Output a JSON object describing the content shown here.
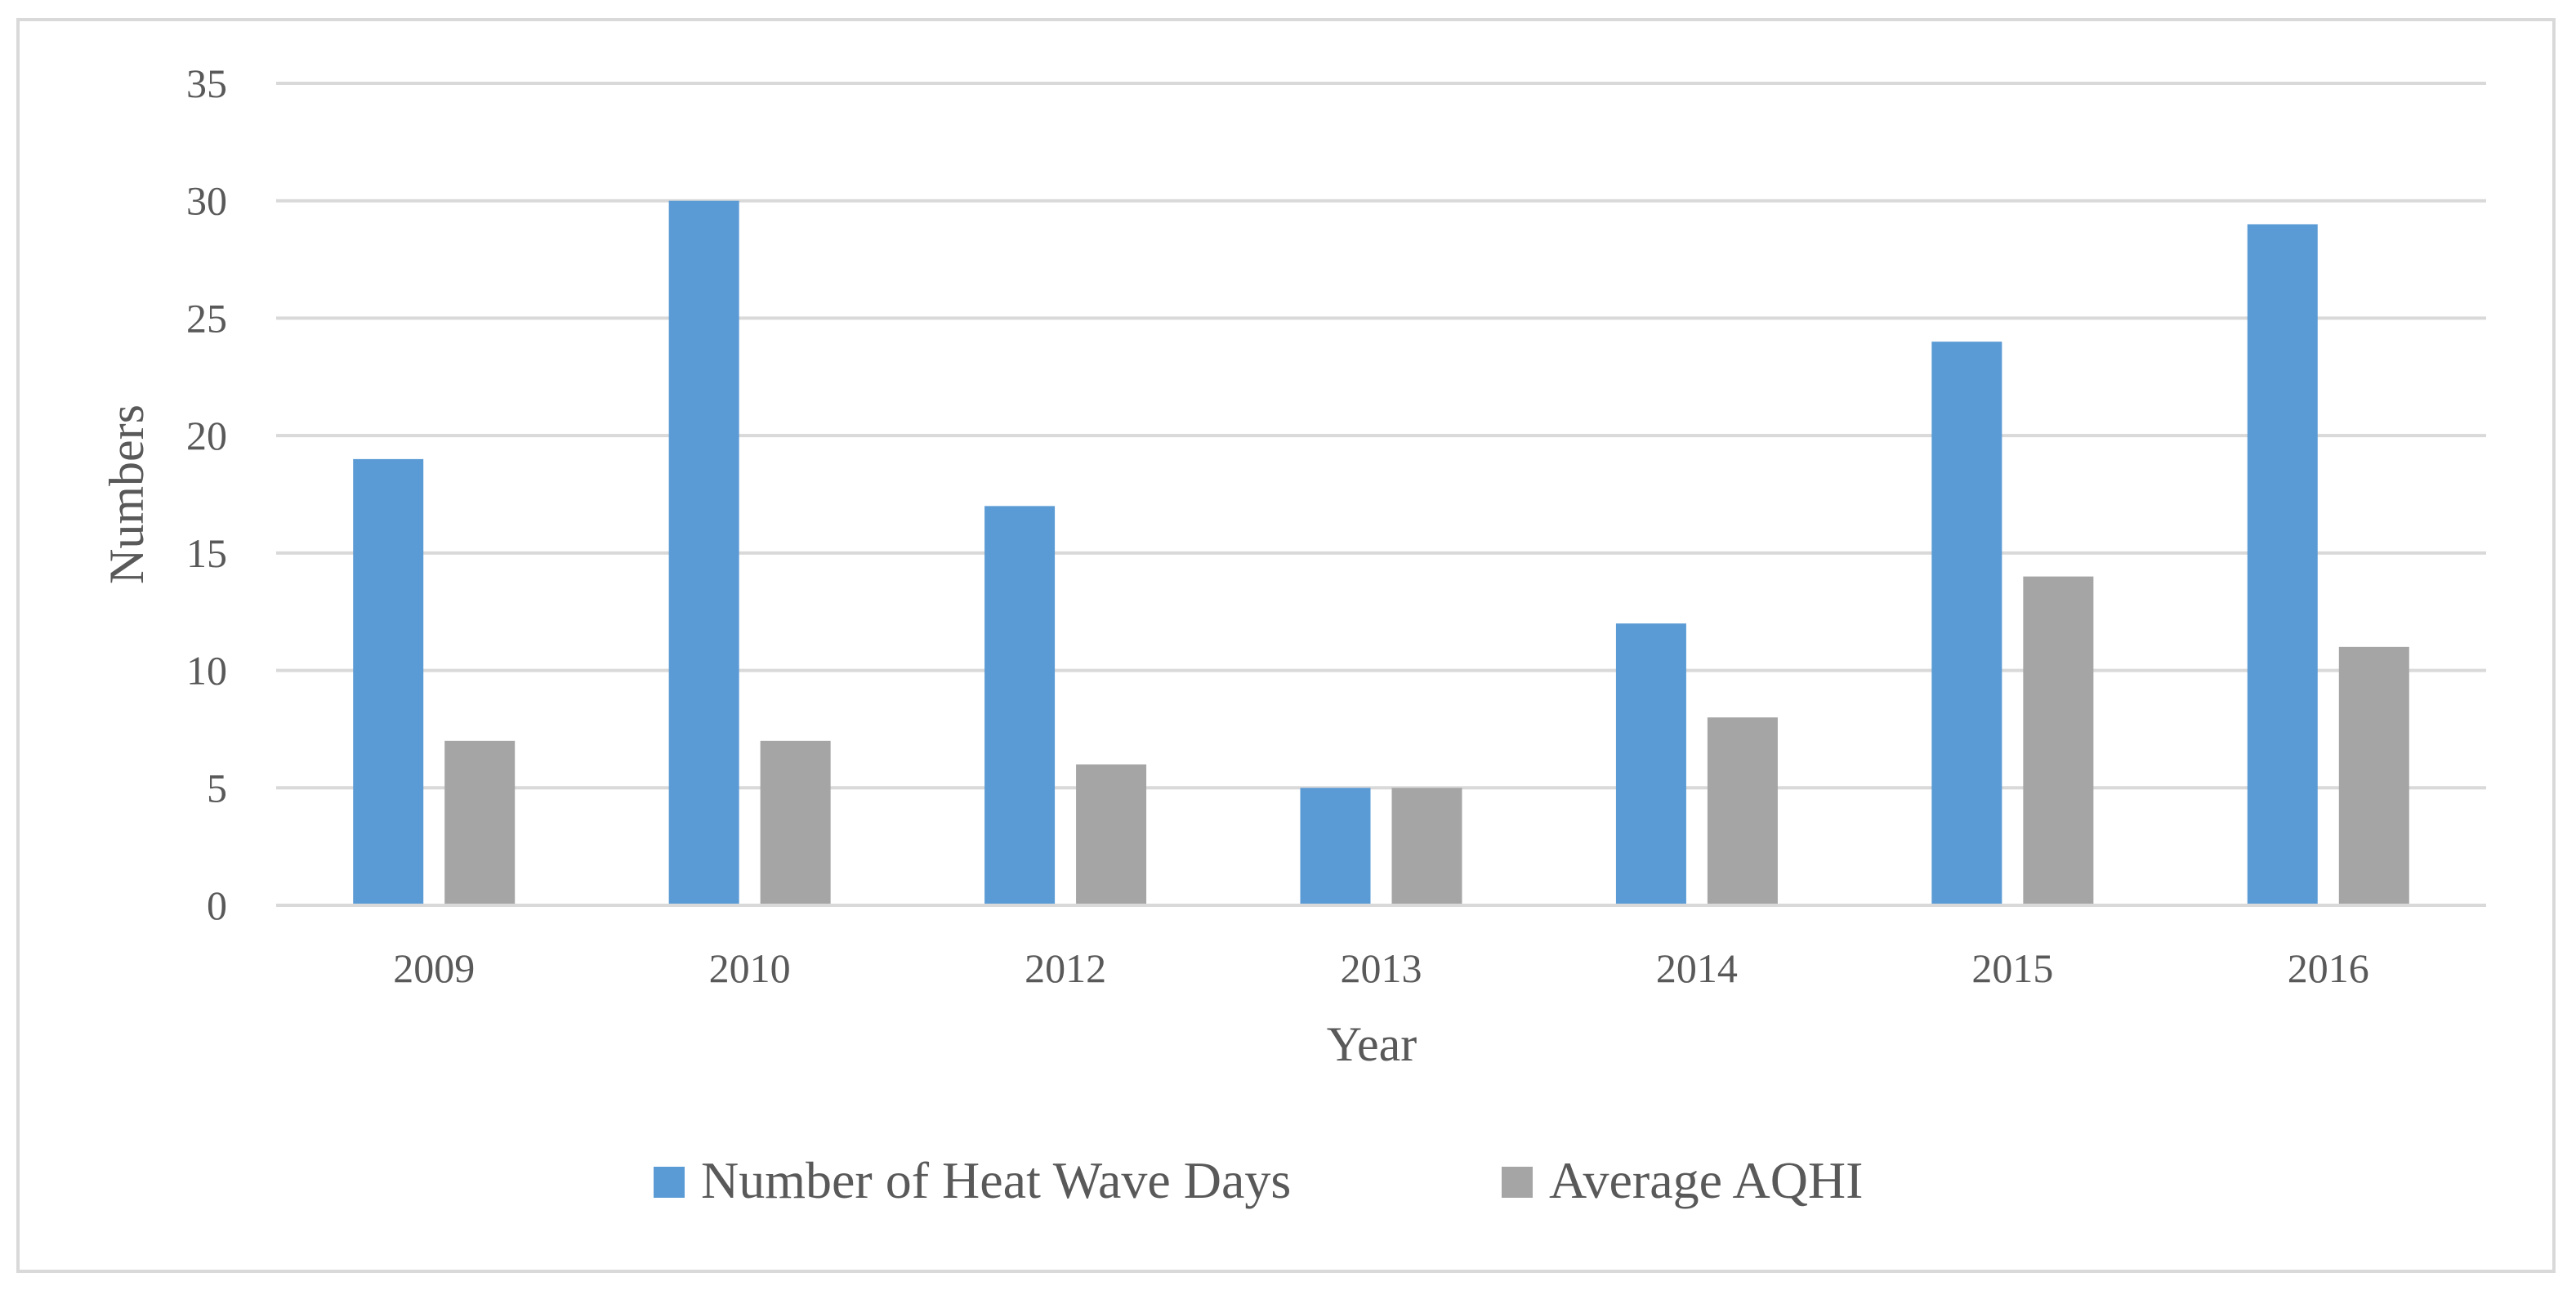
{
  "chart_data": {
    "type": "bar",
    "title": "",
    "xlabel": "Year",
    "ylabel": "Numbers",
    "categories": [
      "2009",
      "2010",
      "2012",
      "2013",
      "2014",
      "2015",
      "2016"
    ],
    "series": [
      {
        "name": "Number of Heat Wave Days",
        "color": "#5b9bd5",
        "values": [
          19,
          30,
          17,
          5,
          12,
          24,
          29
        ]
      },
      {
        "name": "Average AQHI",
        "color": "#a5a5a5",
        "values": [
          7,
          7,
          6,
          5,
          8,
          14,
          11
        ]
      }
    ],
    "ylim": [
      0,
      35
    ],
    "yticks": [
      0,
      5,
      10,
      15,
      20,
      25,
      30,
      35
    ],
    "grid": true,
    "legend_position": "bottom"
  }
}
